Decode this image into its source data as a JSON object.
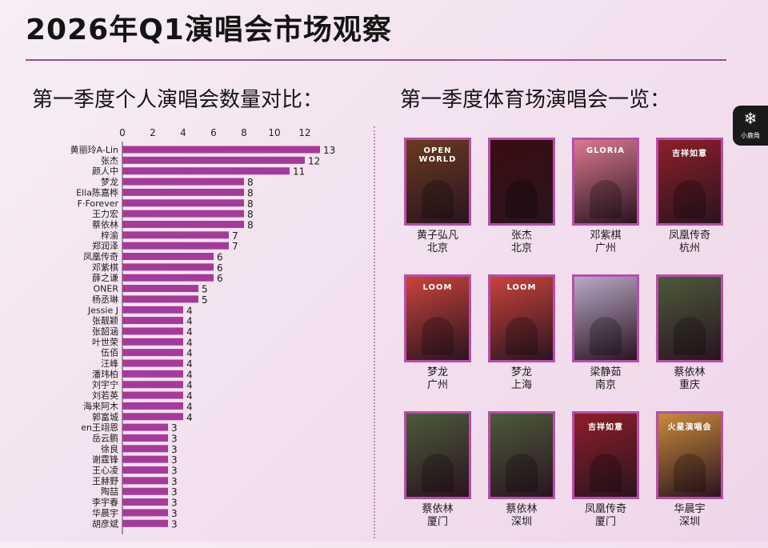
{
  "header": {
    "title": "2026年Q1演唱会市场观察"
  },
  "logo": {
    "label": "小鹿角"
  },
  "left_section": {
    "heading": "第一季度个人演唱会数量对比："
  },
  "right_section": {
    "heading": "第一季度体育场演唱会一览：",
    "concerts": [
      {
        "artist": "黄子弘凡",
        "city": "北京",
        "poster_text": "OPEN WORLD",
        "color": "#6b3a1f"
      },
      {
        "artist": "张杰",
        "city": "北京",
        "poster_text": "",
        "color": "#3a0d10"
      },
      {
        "artist": "邓紫棋",
        "city": "广州",
        "poster_text": "GLORIA",
        "color": "#d97a8e"
      },
      {
        "artist": "凤凰传奇",
        "city": "杭州",
        "poster_text": "吉祥如意",
        "color": "#8d1f28"
      },
      {
        "artist": "梦龙",
        "city": "广州",
        "poster_text": "LOOM",
        "color": "#c9433a"
      },
      {
        "artist": "梦龙",
        "city": "上海",
        "poster_text": "LOOM",
        "color": "#c9433a"
      },
      {
        "artist": "梁静茹",
        "city": "南京",
        "poster_text": "",
        "color": "#b9a9c8"
      },
      {
        "artist": "蔡依林",
        "city": "重庆",
        "poster_text": "",
        "color": "#4c5a3a"
      },
      {
        "artist": "蔡依林",
        "city": "厦门",
        "poster_text": "",
        "color": "#4c5a3a"
      },
      {
        "artist": "蔡依林",
        "city": "深圳",
        "poster_text": "",
        "color": "#4c5a3a"
      },
      {
        "artist": "凤凰传奇",
        "city": "厦门",
        "poster_text": "吉祥如意",
        "color": "#8d1f28"
      },
      {
        "artist": "华晨宇",
        "city": "深圳",
        "poster_text": "火星演唱会",
        "color": "#c98a3a"
      }
    ]
  },
  "chart_data": {
    "type": "bar",
    "orientation": "horizontal",
    "title": "",
    "xlabel": "",
    "ylabel": "",
    "xlim": [
      0,
      13
    ],
    "ticks": [
      0,
      2,
      4,
      6,
      8,
      10,
      12
    ],
    "bar_color": "#a63a9a",
    "categories": [
      "黄丽玲A-Lin",
      "张杰",
      "颜人中",
      "梦龙",
      "Ella陈嘉桦",
      "F·Forever",
      "王力宏",
      "蔡依林",
      "梓渝",
      "郑润泽",
      "凤凰传奇",
      "邓紫棋",
      "薛之谦",
      "ONER",
      "杨丞琳",
      "Jessie J",
      "张靓颖",
      "张韶涵",
      "叶世荣",
      "伍佰",
      "汪峰",
      "潘玮柏",
      "刘宇宁",
      "刘若英",
      "海来阿木",
      "郭富城",
      "en王翊恩",
      "岳云鹏",
      "徐良",
      "谢霆锋",
      "王心凌",
      "王赫野",
      "陶喆",
      "李宇春",
      "华晨宇",
      "胡彦斌"
    ],
    "values": [
      13,
      12,
      11,
      8,
      8,
      8,
      8,
      8,
      7,
      7,
      6,
      6,
      6,
      5,
      5,
      4,
      4,
      4,
      4,
      4,
      4,
      4,
      4,
      4,
      4,
      4,
      3,
      3,
      3,
      3,
      3,
      3,
      3,
      3,
      3,
      3
    ]
  }
}
